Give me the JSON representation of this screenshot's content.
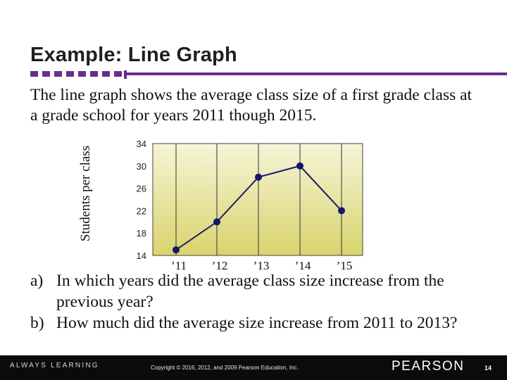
{
  "slide": {
    "title": "Example: Line Graph",
    "intro": "The line graph shows the average class size of a first grade class at a grade school for years 2011 though 2015.",
    "questions": [
      {
        "letter": "a)",
        "text": "In which years did the average class size increase from the previous year?"
      },
      {
        "letter": "b)",
        "text": "How much did the average size increase from 2011 to 2013?"
      }
    ]
  },
  "footer": {
    "left": "ALWAYS LEARNING",
    "copyright": "Copyright © 2016, 2012, and 2009 Pearson Education, Inc.",
    "brand": "PEARSON",
    "page": "14"
  },
  "colors": {
    "accent": "#6b2c8c",
    "plot_top": "#f6f5d8",
    "plot_bottom": "#d9d36c",
    "line": "#1a1a6e",
    "marker": "#15156a"
  },
  "chart_data": {
    "type": "line",
    "categories": [
      "’11",
      "’12",
      "’13",
      "’14",
      "’15"
    ],
    "series": [
      {
        "values": [
          15,
          20,
          28,
          30,
          22
        ]
      }
    ],
    "ylabel": "Students per class",
    "xlabel": "",
    "ylim": [
      14,
      34
    ],
    "yticks": [
      14,
      18,
      22,
      26,
      30,
      34
    ],
    "grid": "vertical",
    "legend": "none"
  }
}
